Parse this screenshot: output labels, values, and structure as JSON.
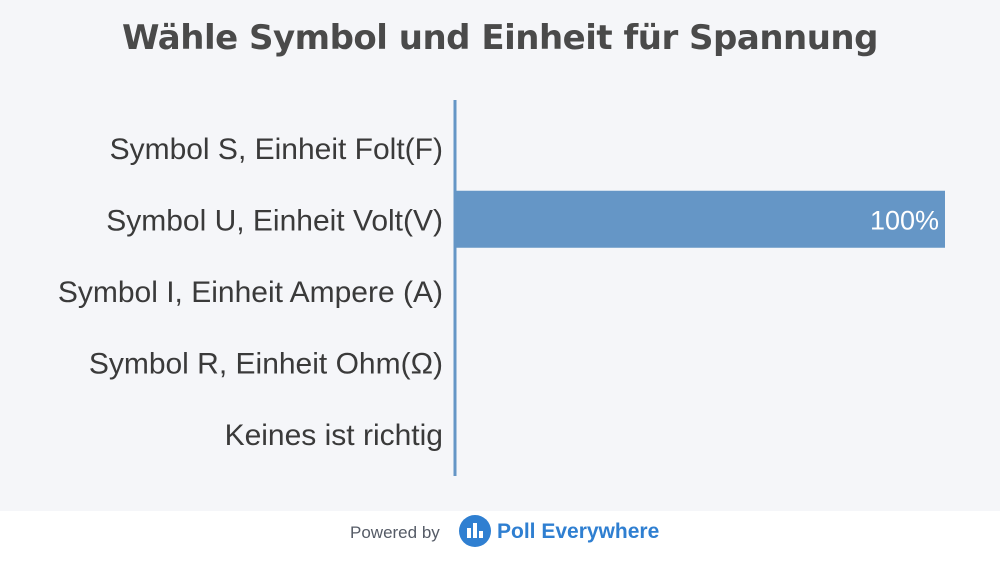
{
  "title": "Wähle Symbol und Einheit für Spannung",
  "chart_data": {
    "type": "bar",
    "orientation": "horizontal",
    "title": "Wähle Symbol und Einheit für Spannung",
    "categories": [
      "Symbol S, Einheit Folt(F)",
      "Symbol U, Einheit Volt(V)",
      "Symbol I, Einheit Ampere (A)",
      "Symbol R, Einheit Ohm(Ω)",
      "Keines ist richtig"
    ],
    "values": [
      0,
      100,
      0,
      0,
      0
    ],
    "value_labels": [
      "",
      "100%",
      "",
      "",
      ""
    ],
    "xlim": [
      0,
      100
    ],
    "bar_color": "#6596c6",
    "axis_color": "#6596c6",
    "grid": false
  },
  "footer": {
    "powered_by": "Powered by",
    "brand": "Poll Everywhere",
    "brand_color": "#2f7fd1",
    "icon": "poll-everywhere-logo-icon"
  }
}
